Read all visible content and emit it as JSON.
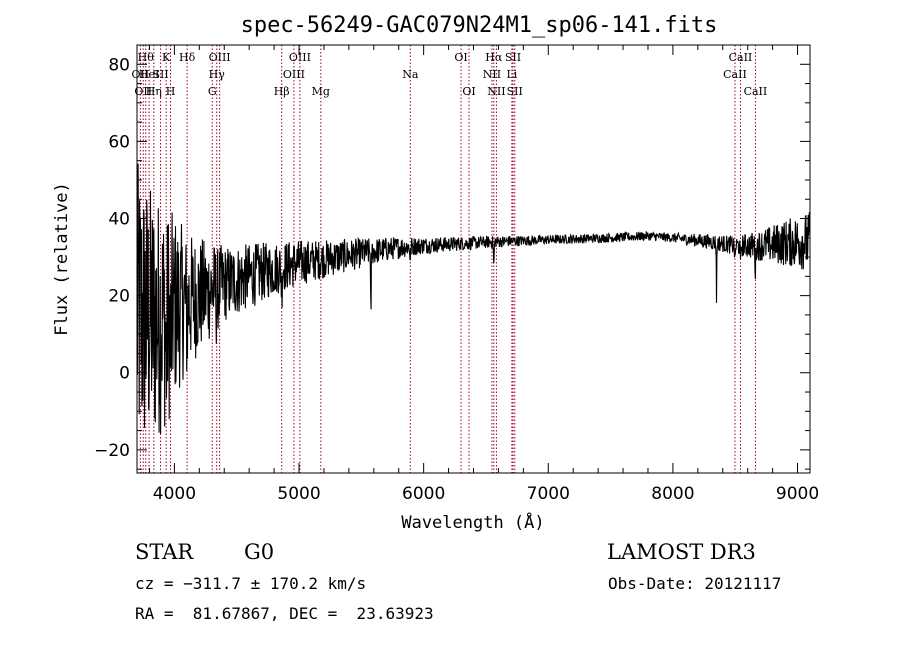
{
  "chart_data": {
    "type": "line",
    "title": "spec-56249-GAC079N24M1_sp06-141.fits",
    "xlabel": "Wavelength (Å)",
    "ylabel": "Flux (relative)",
    "xlim": [
      3700,
      9100
    ],
    "ylim": [
      -26,
      85
    ],
    "xticks": [
      4000,
      5000,
      6000,
      7000,
      8000,
      9000
    ],
    "yticks": [
      -20,
      0,
      20,
      40,
      60,
      80
    ],
    "xtick_labels": [
      "4000",
      "5000",
      "6000",
      "7000",
      "8000",
      "9000"
    ],
    "ytick_labels": [
      "−20",
      "0",
      "20",
      "40",
      "60",
      "80"
    ],
    "x_minor_step": 200,
    "y_minor_step": 5,
    "continuum": [
      [
        3700,
        15
      ],
      [
        3850,
        14
      ],
      [
        4000,
        17
      ],
      [
        4200,
        20
      ],
      [
        4400,
        23
      ],
      [
        4600,
        25
      ],
      [
        4800,
        27
      ],
      [
        5000,
        28.5
      ],
      [
        5200,
        29.5
      ],
      [
        5500,
        31
      ],
      [
        5800,
        32.5
      ],
      [
        6000,
        33
      ],
      [
        6300,
        33.5
      ],
      [
        6600,
        34
      ],
      [
        7000,
        34.5
      ],
      [
        7500,
        35
      ],
      [
        7800,
        35.5
      ],
      [
        8000,
        35
      ],
      [
        8300,
        34
      ],
      [
        8500,
        33
      ],
      [
        8700,
        33
      ],
      [
        9000,
        34
      ],
      [
        9100,
        34
      ]
    ],
    "noise": [
      [
        3700,
        40
      ],
      [
        3950,
        28
      ],
      [
        4100,
        18
      ],
      [
        4400,
        10
      ],
      [
        4800,
        7
      ],
      [
        5200,
        5
      ],
      [
        5600,
        3.5
      ],
      [
        6000,
        2.2
      ],
      [
        6500,
        1.6
      ],
      [
        7000,
        1.2
      ],
      [
        8000,
        1.2
      ],
      [
        8500,
        2.5
      ],
      [
        8700,
        4
      ],
      [
        8900,
        6
      ],
      [
        9100,
        8
      ]
    ],
    "features": [
      {
        "x": 3934,
        "depth": 12,
        "width": 8
      },
      {
        "x": 3969,
        "depth": 10,
        "width": 8
      },
      {
        "x": 4102,
        "depth": 6,
        "width": 6
      },
      {
        "x": 4340,
        "depth": 6,
        "width": 6
      },
      {
        "x": 4861,
        "depth": 6,
        "width": 5
      },
      {
        "x": 5577,
        "depth": 20,
        "width": 3
      },
      {
        "x": 5893,
        "depth": 4,
        "width": 4
      },
      {
        "x": 6563,
        "depth": 6,
        "width": 4
      },
      {
        "x": 8350,
        "depth": 14,
        "width": 3
      },
      {
        "x": 8498,
        "depth": 4,
        "width": 4
      },
      {
        "x": 8542,
        "depth": 5,
        "width": 4
      },
      {
        "x": 8662,
        "depth": 7,
        "width": 4
      }
    ],
    "emission_lines": [
      {
        "lambda": 3727,
        "label": "OII",
        "row": 2
      },
      {
        "lambda": 3750,
        "label": "OII",
        "row": 3
      },
      {
        "lambda": 3770,
        "label": "Hθ",
        "row": 1
      },
      {
        "lambda": 3797,
        "label": "HeI",
        "row": 2
      },
      {
        "lambda": 3835,
        "label": "Hη",
        "row": 3
      },
      {
        "lambda": 3889,
        "label": "SII",
        "row": 2
      },
      {
        "lambda": 3934,
        "label": "K",
        "row": 1
      },
      {
        "lambda": 3969,
        "label": "H",
        "row": 3
      },
      {
        "lambda": 4102,
        "label": "Hδ",
        "row": 1
      },
      {
        "lambda": 4304,
        "label": "G",
        "row": 3
      },
      {
        "lambda": 4340,
        "label": "Hγ",
        "row": 2
      },
      {
        "lambda": 4363,
        "label": "OIII",
        "row": 1
      },
      {
        "lambda": 4861,
        "label": "Hβ",
        "row": 3
      },
      {
        "lambda": 4959,
        "label": "OIII",
        "row": 2
      },
      {
        "lambda": 5007,
        "label": "OIII",
        "row": 1
      },
      {
        "lambda": 5175,
        "label": "Mg",
        "row": 3
      },
      {
        "lambda": 5893,
        "label": "Na",
        "row": 2
      },
      {
        "lambda": 6300,
        "label": "OI",
        "row": 1
      },
      {
        "lambda": 6364,
        "label": "OI",
        "row": 3
      },
      {
        "lambda": 6548,
        "label": "NII",
        "row": 2
      },
      {
        "lambda": 6563,
        "label": "Hα",
        "row": 1
      },
      {
        "lambda": 6584,
        "label": "NII",
        "row": 3
      },
      {
        "lambda": 6708,
        "label": "Li",
        "row": 2
      },
      {
        "lambda": 6717,
        "label": "SII",
        "row": 1
      },
      {
        "lambda": 6731,
        "label": "SII",
        "row": 3
      },
      {
        "lambda": 8498,
        "label": "CaII",
        "row": 2
      },
      {
        "lambda": 8542,
        "label": "CaII",
        "row": 1
      },
      {
        "lambda": 8662,
        "label": "CaII",
        "row": 3
      }
    ],
    "line_color": "#000000",
    "marker_color": "#a0001e"
  },
  "info": {
    "class_label": "STAR",
    "subclass": "G0",
    "survey": "LAMOST DR3",
    "redshift_text": "cz = −311.7 ± 170.2 km/s",
    "obs_date_text": "Obs-Date: 20121117",
    "coords_text": "RA =  81.67867, DEC =  23.63923"
  }
}
